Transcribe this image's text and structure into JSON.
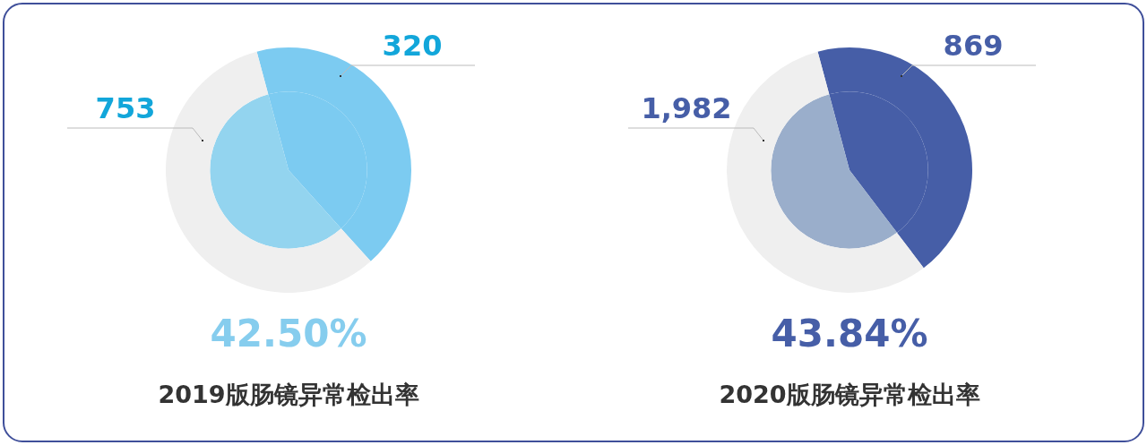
{
  "chart_data": [
    {
      "type": "pie",
      "title": "2019版肠镜异常检出率",
      "categories": [
        null,
        null
      ],
      "series": [
        {
          "colors": [
            "#7ccbf1",
            "#efefef"
          ],
          "values": [
            320,
            433
          ],
          "value_labels": [
            "320",
            null
          ]
        },
        {
          "colors": [
            "#7ccbf1",
            "#93d4ef"
          ],
          "values": [
            42.5,
            57.5
          ]
        }
      ],
      "annotations": [
        "753",
        "42.50%"
      ]
    },
    {
      "type": "pie",
      "title": "2020版肠镜异常检出率",
      "categories": [
        null,
        null
      ],
      "series": [
        {
          "colors": [
            "#465ea7",
            "#efefef"
          ],
          "values": [
            869,
            1113
          ],
          "value_labels": [
            "869",
            null
          ]
        },
        {
          "colors": [
            "#465ea7",
            "#9aaecb"
          ],
          "values": [
            43.84,
            56.16
          ]
        }
      ],
      "annotations": [
        "1,982",
        "43.84%"
      ]
    }
  ]
}
